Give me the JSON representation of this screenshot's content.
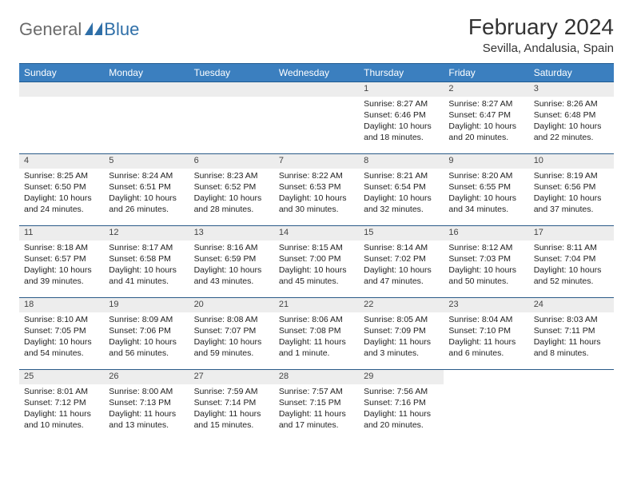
{
  "logo": {
    "text1": "General",
    "text2": "Blue"
  },
  "title": "February 2024",
  "location": "Sevilla, Andalusia, Spain",
  "colors": {
    "header_bg": "#3b7fbf",
    "header_text": "#ffffff",
    "daynum_bg": "#ededed",
    "row_border": "#2a5a88",
    "logo_gray": "#6b6b6b",
    "logo_blue": "#2f6fa8"
  },
  "weekdays": [
    "Sunday",
    "Monday",
    "Tuesday",
    "Wednesday",
    "Thursday",
    "Friday",
    "Saturday"
  ],
  "weeks": [
    [
      null,
      null,
      null,
      null,
      {
        "n": "1",
        "sr": "Sunrise: 8:27 AM",
        "ss": "Sunset: 6:46 PM",
        "dl": "Daylight: 10 hours and 18 minutes."
      },
      {
        "n": "2",
        "sr": "Sunrise: 8:27 AM",
        "ss": "Sunset: 6:47 PM",
        "dl": "Daylight: 10 hours and 20 minutes."
      },
      {
        "n": "3",
        "sr": "Sunrise: 8:26 AM",
        "ss": "Sunset: 6:48 PM",
        "dl": "Daylight: 10 hours and 22 minutes."
      }
    ],
    [
      {
        "n": "4",
        "sr": "Sunrise: 8:25 AM",
        "ss": "Sunset: 6:50 PM",
        "dl": "Daylight: 10 hours and 24 minutes."
      },
      {
        "n": "5",
        "sr": "Sunrise: 8:24 AM",
        "ss": "Sunset: 6:51 PM",
        "dl": "Daylight: 10 hours and 26 minutes."
      },
      {
        "n": "6",
        "sr": "Sunrise: 8:23 AM",
        "ss": "Sunset: 6:52 PM",
        "dl": "Daylight: 10 hours and 28 minutes."
      },
      {
        "n": "7",
        "sr": "Sunrise: 8:22 AM",
        "ss": "Sunset: 6:53 PM",
        "dl": "Daylight: 10 hours and 30 minutes."
      },
      {
        "n": "8",
        "sr": "Sunrise: 8:21 AM",
        "ss": "Sunset: 6:54 PM",
        "dl": "Daylight: 10 hours and 32 minutes."
      },
      {
        "n": "9",
        "sr": "Sunrise: 8:20 AM",
        "ss": "Sunset: 6:55 PM",
        "dl": "Daylight: 10 hours and 34 minutes."
      },
      {
        "n": "10",
        "sr": "Sunrise: 8:19 AM",
        "ss": "Sunset: 6:56 PM",
        "dl": "Daylight: 10 hours and 37 minutes."
      }
    ],
    [
      {
        "n": "11",
        "sr": "Sunrise: 8:18 AM",
        "ss": "Sunset: 6:57 PM",
        "dl": "Daylight: 10 hours and 39 minutes."
      },
      {
        "n": "12",
        "sr": "Sunrise: 8:17 AM",
        "ss": "Sunset: 6:58 PM",
        "dl": "Daylight: 10 hours and 41 minutes."
      },
      {
        "n": "13",
        "sr": "Sunrise: 8:16 AM",
        "ss": "Sunset: 6:59 PM",
        "dl": "Daylight: 10 hours and 43 minutes."
      },
      {
        "n": "14",
        "sr": "Sunrise: 8:15 AM",
        "ss": "Sunset: 7:00 PM",
        "dl": "Daylight: 10 hours and 45 minutes."
      },
      {
        "n": "15",
        "sr": "Sunrise: 8:14 AM",
        "ss": "Sunset: 7:02 PM",
        "dl": "Daylight: 10 hours and 47 minutes."
      },
      {
        "n": "16",
        "sr": "Sunrise: 8:12 AM",
        "ss": "Sunset: 7:03 PM",
        "dl": "Daylight: 10 hours and 50 minutes."
      },
      {
        "n": "17",
        "sr": "Sunrise: 8:11 AM",
        "ss": "Sunset: 7:04 PM",
        "dl": "Daylight: 10 hours and 52 minutes."
      }
    ],
    [
      {
        "n": "18",
        "sr": "Sunrise: 8:10 AM",
        "ss": "Sunset: 7:05 PM",
        "dl": "Daylight: 10 hours and 54 minutes."
      },
      {
        "n": "19",
        "sr": "Sunrise: 8:09 AM",
        "ss": "Sunset: 7:06 PM",
        "dl": "Daylight: 10 hours and 56 minutes."
      },
      {
        "n": "20",
        "sr": "Sunrise: 8:08 AM",
        "ss": "Sunset: 7:07 PM",
        "dl": "Daylight: 10 hours and 59 minutes."
      },
      {
        "n": "21",
        "sr": "Sunrise: 8:06 AM",
        "ss": "Sunset: 7:08 PM",
        "dl": "Daylight: 11 hours and 1 minute."
      },
      {
        "n": "22",
        "sr": "Sunrise: 8:05 AM",
        "ss": "Sunset: 7:09 PM",
        "dl": "Daylight: 11 hours and 3 minutes."
      },
      {
        "n": "23",
        "sr": "Sunrise: 8:04 AM",
        "ss": "Sunset: 7:10 PM",
        "dl": "Daylight: 11 hours and 6 minutes."
      },
      {
        "n": "24",
        "sr": "Sunrise: 8:03 AM",
        "ss": "Sunset: 7:11 PM",
        "dl": "Daylight: 11 hours and 8 minutes."
      }
    ],
    [
      {
        "n": "25",
        "sr": "Sunrise: 8:01 AM",
        "ss": "Sunset: 7:12 PM",
        "dl": "Daylight: 11 hours and 10 minutes."
      },
      {
        "n": "26",
        "sr": "Sunrise: 8:00 AM",
        "ss": "Sunset: 7:13 PM",
        "dl": "Daylight: 11 hours and 13 minutes."
      },
      {
        "n": "27",
        "sr": "Sunrise: 7:59 AM",
        "ss": "Sunset: 7:14 PM",
        "dl": "Daylight: 11 hours and 15 minutes."
      },
      {
        "n": "28",
        "sr": "Sunrise: 7:57 AM",
        "ss": "Sunset: 7:15 PM",
        "dl": "Daylight: 11 hours and 17 minutes."
      },
      {
        "n": "29",
        "sr": "Sunrise: 7:56 AM",
        "ss": "Sunset: 7:16 PM",
        "dl": "Daylight: 11 hours and 20 minutes."
      },
      null,
      null
    ]
  ]
}
